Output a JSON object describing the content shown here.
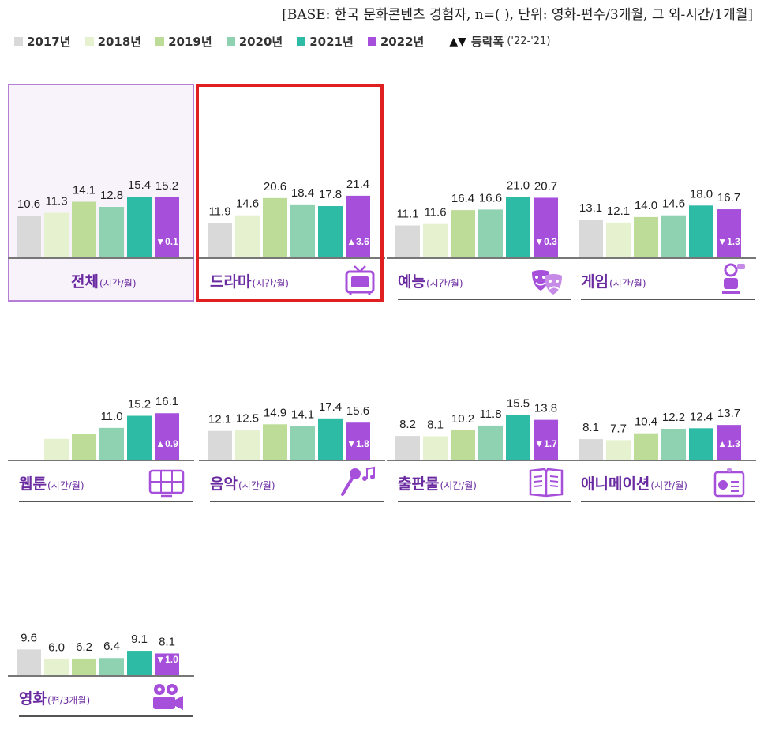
{
  "base_note": "[BASE: 한국 문화콘텐츠 경험자, n=( ), 단위: 영화-편수/3개월, 그 외-시간/1개월]",
  "legend": {
    "years": [
      {
        "label": "2017년",
        "color": "#d9d9d9"
      },
      {
        "label": "2018년",
        "color": "#e6f2cf"
      },
      {
        "label": "2019년",
        "color": "#bcdc97"
      },
      {
        "label": "2020년",
        "color": "#8fd2b1"
      },
      {
        "label": "2021년",
        "color": "#2dbba5"
      },
      {
        "label": "2022년",
        "color": "#a64fdb"
      }
    ],
    "change_symbol": "▲▼",
    "change_label": "등락폭",
    "change_note": "('22-'21)"
  },
  "chart_data": [
    {
      "type": "bar",
      "title": "전체",
      "unit": "(시간/월)",
      "categories": [
        "2017년",
        "2018년",
        "2019년",
        "2020년",
        "2021년",
        "2022년"
      ],
      "values": [
        10.6,
        11.3,
        14.1,
        12.8,
        15.4,
        15.2
      ],
      "change": {
        "direction": "down",
        "value": "0.1"
      },
      "icon": "none"
    },
    {
      "type": "bar",
      "title": "드라마",
      "unit": "(시간/월)",
      "categories": [
        "2017년",
        "2018년",
        "2019년",
        "2020년",
        "2021년",
        "2022년"
      ],
      "values": [
        11.9,
        14.6,
        20.6,
        18.4,
        17.8,
        21.4
      ],
      "change": {
        "direction": "up",
        "value": "3.6"
      },
      "icon": "tv-icon"
    },
    {
      "type": "bar",
      "title": "예능",
      "unit": "(시간/월)",
      "categories": [
        "2017년",
        "2018년",
        "2019년",
        "2020년",
        "2021년",
        "2022년"
      ],
      "values": [
        11.1,
        11.6,
        16.4,
        16.6,
        21.0,
        20.7
      ],
      "change": {
        "direction": "down",
        "value": "0.3"
      },
      "icon": "theater-masks-icon"
    },
    {
      "type": "bar",
      "title": "게임",
      "unit": "(시간/월)",
      "categories": [
        "2017년",
        "2018년",
        "2019년",
        "2020년",
        "2021년",
        "2022년"
      ],
      "values": [
        13.1,
        12.1,
        14.0,
        14.6,
        18.0,
        16.7
      ],
      "change": {
        "direction": "down",
        "value": "1.3"
      },
      "icon": "gamer-icon"
    },
    {
      "type": "bar",
      "title": "웹툰",
      "unit": "(시간/월)",
      "categories": [
        "2017년",
        "2018년",
        "2019년",
        "2020년",
        "2021년",
        "2022년"
      ],
      "values": [
        null,
        7.2,
        9.0,
        11.0,
        15.2,
        16.1
      ],
      "labels": [
        "",
        "",
        "",
        "11.0",
        "15.2",
        "16.1"
      ],
      "change": {
        "direction": "up",
        "value": "0.9"
      },
      "icon": "webtoon-panels-icon"
    },
    {
      "type": "bar",
      "title": "음악",
      "unit": "(시간/월)",
      "categories": [
        "2017년",
        "2018년",
        "2019년",
        "2020년",
        "2021년",
        "2022년"
      ],
      "values": [
        12.1,
        12.5,
        14.9,
        14.1,
        17.4,
        15.6
      ],
      "change": {
        "direction": "down",
        "value": "1.8"
      },
      "icon": "microphone-music-icon"
    },
    {
      "type": "bar",
      "title": "출판물",
      "unit": "(시간/월)",
      "categories": [
        "2017년",
        "2018년",
        "2019년",
        "2020년",
        "2021년",
        "2022년"
      ],
      "values": [
        8.2,
        8.1,
        10.2,
        11.8,
        15.5,
        13.8
      ],
      "change": {
        "direction": "down",
        "value": "1.7"
      },
      "icon": "open-book-icon"
    },
    {
      "type": "bar",
      "title": "애니메이션",
      "unit": "(시간/월)",
      "categories": [
        "2017년",
        "2018년",
        "2019년",
        "2020년",
        "2021년",
        "2022년"
      ],
      "values": [
        8.1,
        7.7,
        10.4,
        12.2,
        12.4,
        13.7
      ],
      "change": {
        "direction": "up",
        "value": "1.3"
      },
      "icon": "animation-board-icon"
    },
    {
      "type": "bar",
      "title": "영화",
      "unit": "(편/3개월)",
      "categories": [
        "2017년",
        "2018년",
        "2019년",
        "2020년",
        "2021년",
        "2022년"
      ],
      "values": [
        9.6,
        6.0,
        6.2,
        6.4,
        9.1,
        8.1
      ],
      "change": {
        "direction": "down",
        "value": "1.0"
      },
      "icon": "movie-camera-icon"
    }
  ]
}
